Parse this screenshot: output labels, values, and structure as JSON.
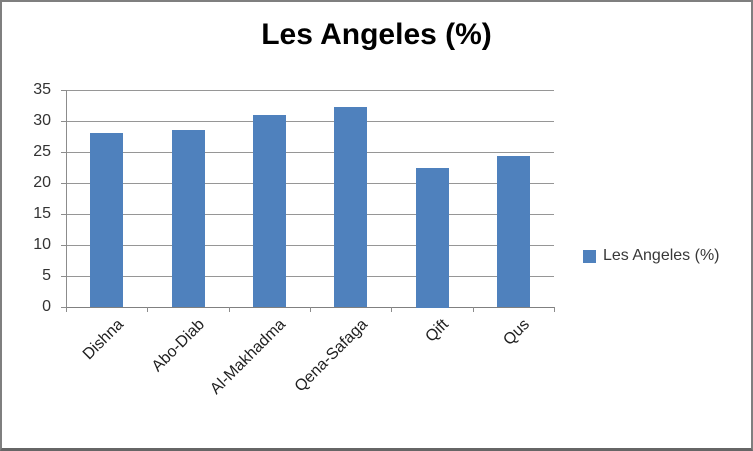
{
  "window": {
    "background": "#ffffff",
    "border_color": "#7f7f7f"
  },
  "chart_data": {
    "type": "bar",
    "title": "Les Angeles (%)",
    "categories": [
      "Dishna",
      "Abo-Diab",
      "Al-Makhadma",
      "Qena-Safaga",
      "Qift",
      "Qus"
    ],
    "series": [
      {
        "name": "Les Angeles (%)",
        "values": [
          28,
          28.6,
          31,
          32.3,
          22.5,
          24.4
        ]
      }
    ],
    "xlabel": "",
    "ylabel": "",
    "ylim": [
      0,
      35
    ],
    "ytick_step": 5,
    "ytick_labels": [
      "0",
      "5",
      "10",
      "15",
      "20",
      "25",
      "30",
      "35"
    ],
    "grid": true,
    "legend_position": "right",
    "legend_label": "Les Angeles (%)",
    "bar_color": "#4F81BD",
    "gridline_color": "#969696",
    "axis_color": "#8c8c8c",
    "title_color": "#000000",
    "tick_label_color": "#333333"
  }
}
